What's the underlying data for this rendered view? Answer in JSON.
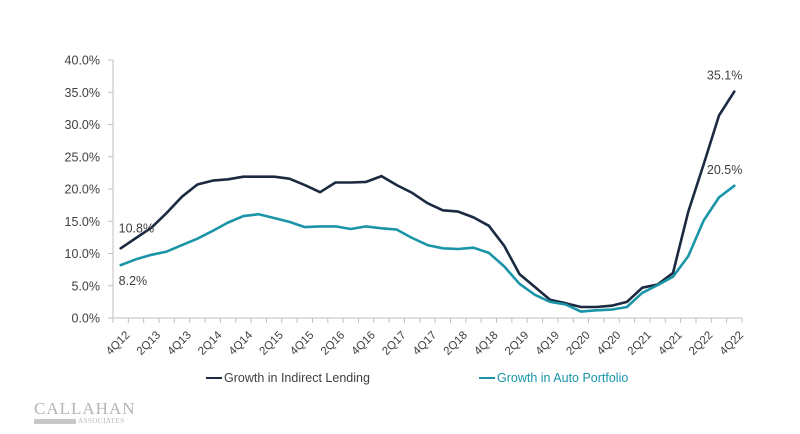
{
  "chart_data": {
    "type": "line",
    "title": "",
    "xlabel": "",
    "ylabel": "",
    "ylim": [
      0,
      40
    ],
    "yticks": [
      "0.0%",
      "5.0%",
      "10.0%",
      "15.0%",
      "20.0%",
      "25.0%",
      "30.0%",
      "35.0%",
      "40.0%"
    ],
    "ytick_values": [
      0,
      5,
      10,
      15,
      20,
      25,
      30,
      35,
      40
    ],
    "grid": false,
    "legend_position": "bottom",
    "x": [
      "4Q12",
      "1Q13",
      "2Q13",
      "3Q13",
      "4Q13",
      "1Q14",
      "2Q14",
      "3Q14",
      "4Q14",
      "1Q15",
      "2Q15",
      "3Q15",
      "4Q15",
      "1Q16",
      "2Q16",
      "3Q16",
      "4Q16",
      "1Q17",
      "2Q17",
      "3Q17",
      "4Q17",
      "1Q18",
      "2Q18",
      "3Q18",
      "4Q18",
      "1Q19",
      "2Q19",
      "3Q19",
      "4Q19",
      "1Q20",
      "2Q20",
      "3Q20",
      "4Q20",
      "1Q21",
      "2Q21",
      "3Q21",
      "4Q21",
      "1Q22",
      "2Q22",
      "3Q22",
      "4Q22"
    ],
    "x_tick_labels": [
      "4Q12",
      "2Q13",
      "4Q13",
      "2Q14",
      "4Q14",
      "2Q15",
      "4Q15",
      "2Q16",
      "4Q16",
      "2Q17",
      "4Q17",
      "2Q18",
      "4Q18",
      "2Q19",
      "4Q19",
      "2Q20",
      "4Q20",
      "2Q21",
      "4Q21",
      "2Q22",
      "4Q22"
    ],
    "series": [
      {
        "name": "Growth in Indirect Lending",
        "color": "#1b2a41",
        "values": [
          10.8,
          12.4,
          14.0,
          16.3,
          18.8,
          20.7,
          21.3,
          21.5,
          21.9,
          21.9,
          21.9,
          21.6,
          20.6,
          19.5,
          21.0,
          21.0,
          21.1,
          22.0,
          20.6,
          19.4,
          17.8,
          16.7,
          16.5,
          15.6,
          14.3,
          11.2,
          6.8,
          4.8,
          2.8,
          2.3,
          1.7,
          1.7,
          1.9,
          2.5,
          4.7,
          5.2,
          7.0,
          16.5,
          23.8,
          31.4,
          35.1
        ]
      },
      {
        "name": "Growth in Auto Portfolio",
        "color": "#1a95a8",
        "values": [
          8.2,
          9.1,
          9.8,
          10.3,
          11.3,
          12.3,
          13.5,
          14.8,
          15.8,
          16.1,
          15.5,
          14.9,
          14.1,
          14.2,
          14.2,
          13.8,
          14.2,
          13.9,
          13.7,
          12.4,
          11.3,
          10.8,
          10.7,
          10.9,
          10.1,
          8.0,
          5.3,
          3.6,
          2.5,
          2.1,
          1.0,
          1.2,
          1.3,
          1.7,
          3.9,
          5.1,
          6.4,
          9.6,
          15.1,
          18.7,
          20.5
        ]
      }
    ],
    "annotations": [
      {
        "series": 0,
        "point": "4Q12",
        "text": "10.8%",
        "placement": "above"
      },
      {
        "series": 1,
        "point": "4Q12",
        "text": "8.2%",
        "placement": "below"
      },
      {
        "series": 0,
        "point": "4Q22",
        "text": "35.1%",
        "placement": "above"
      },
      {
        "series": 1,
        "point": "4Q22",
        "text": "20.5%",
        "placement": "above"
      }
    ]
  },
  "legend": {
    "items": [
      {
        "label": "Growth in Indirect Lending",
        "swatch_color": "#1b2a41",
        "text_color": "#404040"
      },
      {
        "label": "Growth in Auto Portfolio",
        "swatch_color": "#1a95a8",
        "text_color": "#1a95a8"
      }
    ]
  },
  "logo": {
    "main": "CALLAHAN",
    "sub": "ASSOCIATES"
  }
}
